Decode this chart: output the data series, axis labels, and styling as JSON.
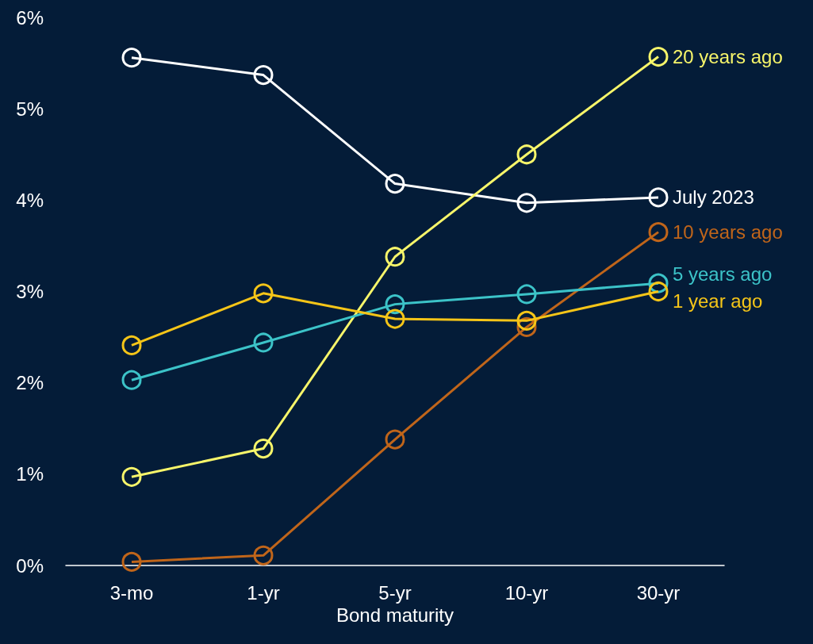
{
  "chart_data": {
    "type": "line",
    "xlabel": "Bond maturity",
    "categories": [
      "3-mo",
      "1-yr",
      "5-yr",
      "10-yr",
      "30-yr"
    ],
    "series": [
      {
        "name": "July 2023",
        "color": "#ffffff",
        "values": [
          5.56,
          5.37,
          4.18,
          3.97,
          4.03
        ]
      },
      {
        "name": "20 years ago",
        "color": "#f7f56a",
        "values": [
          0.97,
          1.28,
          3.38,
          4.5,
          5.57
        ]
      },
      {
        "name": "10 years ago",
        "color": "#c0651a",
        "values": [
          0.04,
          0.11,
          1.38,
          2.61,
          3.65
        ]
      },
      {
        "name": "5 years ago",
        "color": "#3cc3c8",
        "values": [
          2.03,
          2.44,
          2.86,
          2.97,
          3.09
        ]
      },
      {
        "name": "1 year ago",
        "color": "#f5c518",
        "values": [
          2.41,
          2.98,
          2.7,
          2.68,
          3.0
        ]
      }
    ],
    "ylim": [
      0,
      6
    ],
    "yticks": [
      {
        "value": 0,
        "label": "0%"
      },
      {
        "value": 1,
        "label": "1%"
      },
      {
        "value": 2,
        "label": "2%"
      },
      {
        "value": 3,
        "label": "3%"
      },
      {
        "value": 4,
        "label": "4%"
      },
      {
        "value": 5,
        "label": "5%"
      },
      {
        "value": 6,
        "label": "6%"
      }
    ],
    "grid": false,
    "legend": false,
    "marker": "circle",
    "line_style": "solid"
  }
}
